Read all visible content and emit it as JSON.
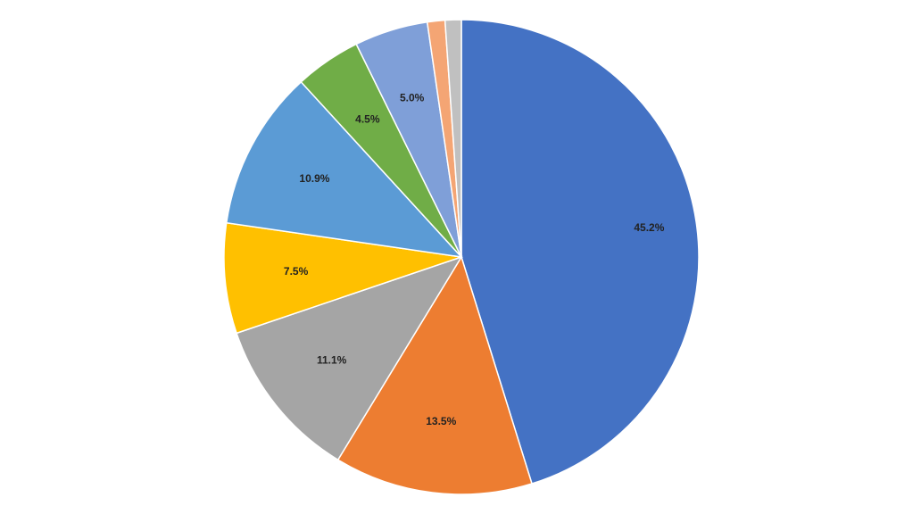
{
  "chart_data": {
    "type": "pie",
    "values": [
      45.2,
      13.5,
      11.1,
      7.5,
      10.9,
      4.5,
      5.0,
      1.2,
      1.1
    ],
    "value_labels": [
      "45.2%",
      "13.5%",
      "11.1%",
      "7.5%",
      "10.9%",
      "4.5%",
      "5.0%",
      null,
      null
    ],
    "colors": [
      "#4472c4",
      "#ed7d31",
      "#a5a5a5",
      "#ffc000",
      "#5b9bd5",
      "#70ad47",
      "#7f9fd8",
      "#f4a574",
      "#c0c0c0"
    ]
  }
}
